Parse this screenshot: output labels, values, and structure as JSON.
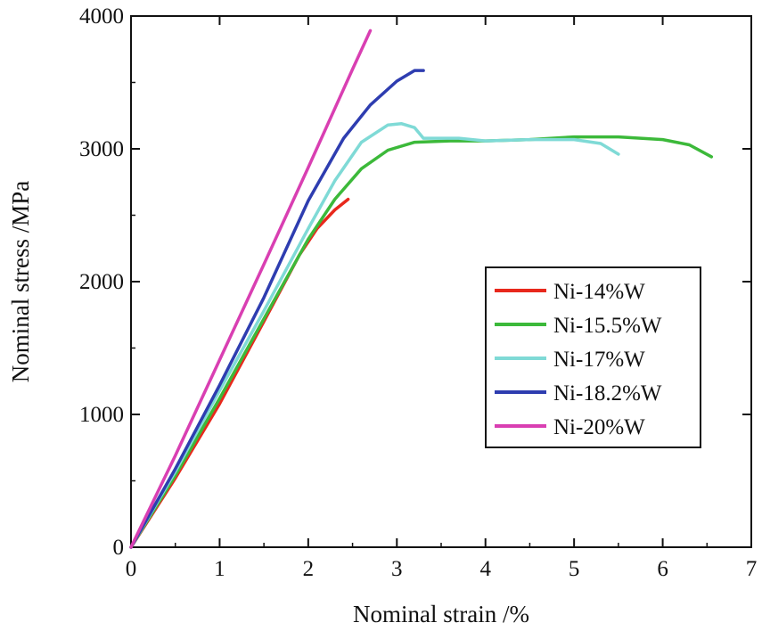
{
  "chart_data": {
    "type": "line",
    "title": "",
    "xlabel": "Nominal strain /%",
    "ylabel": "Nominal stress /MPa",
    "xlim": [
      0,
      7
    ],
    "ylim": [
      0,
      4000
    ],
    "xticks": [
      "0",
      "1",
      "2",
      "3",
      "4",
      "5",
      "6",
      "7"
    ],
    "yticks": [
      "0",
      "1000",
      "2000",
      "3000",
      "4000"
    ],
    "grid": false,
    "legend_position": "right-middle",
    "series": [
      {
        "name": "Ni-14%W",
        "color": "#e8281c",
        "x": [
          0,
          0.5,
          1.0,
          1.5,
          1.9,
          2.1,
          2.3,
          2.45
        ],
        "y": [
          0,
          520,
          1080,
          1700,
          2200,
          2400,
          2540,
          2620
        ]
      },
      {
        "name": "Ni-15.5%W",
        "color": "#3cb93a",
        "x": [
          0,
          0.5,
          1.0,
          1.5,
          2.0,
          2.3,
          2.6,
          2.9,
          3.2,
          3.6,
          4.0,
          4.5,
          5.0,
          5.5,
          6.0,
          6.3,
          6.55
        ],
        "y": [
          0,
          540,
          1120,
          1720,
          2320,
          2620,
          2850,
          2990,
          3050,
          3060,
          3060,
          3070,
          3090,
          3090,
          3070,
          3030,
          2940
        ]
      },
      {
        "name": "Ni-17%W",
        "color": "#7fdad6",
        "x": [
          0,
          0.5,
          1.0,
          1.5,
          2.0,
          2.3,
          2.6,
          2.9,
          3.05,
          3.2,
          3.3,
          3.7,
          4.0,
          4.5,
          5.0,
          5.3,
          5.5
        ],
        "y": [
          0,
          570,
          1180,
          1780,
          2400,
          2760,
          3050,
          3180,
          3190,
          3160,
          3080,
          3080,
          3060,
          3070,
          3070,
          3040,
          2960
        ]
      },
      {
        "name": "Ni-18.2%W",
        "color": "#2e3db0",
        "x": [
          0,
          0.5,
          1.0,
          1.5,
          2.0,
          2.4,
          2.7,
          3.0,
          3.2,
          3.3
        ],
        "y": [
          0,
          590,
          1220,
          1880,
          2610,
          3080,
          3330,
          3510,
          3590,
          3590
        ]
      },
      {
        "name": "Ni-20%W",
        "color": "#d93fb2",
        "x": [
          0,
          0.5,
          1.0,
          1.5,
          2.0,
          2.5,
          2.7
        ],
        "y": [
          0,
          690,
          1410,
          2130,
          2860,
          3600,
          3890
        ]
      }
    ]
  }
}
